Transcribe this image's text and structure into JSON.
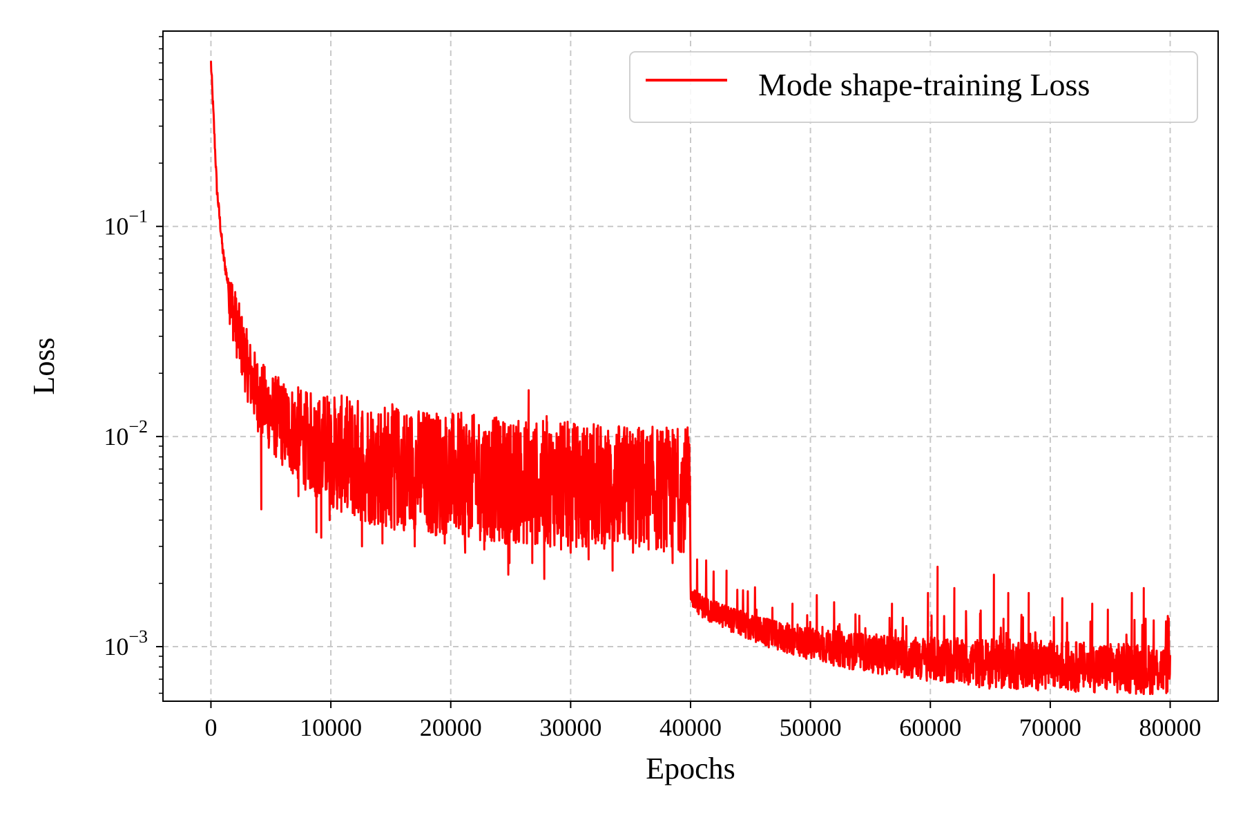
{
  "chart_data": {
    "type": "line",
    "title": "",
    "xlabel": "Epochs",
    "ylabel": "Loss",
    "yscale": "log",
    "xlim": [
      -4000,
      84000
    ],
    "ylim": [
      0.00055,
      0.85
    ],
    "grid": true,
    "legend_position": "top-right",
    "x_ticks": [
      0,
      10000,
      20000,
      30000,
      40000,
      50000,
      60000,
      70000,
      80000
    ],
    "x_tick_labels": [
      "0",
      "10000",
      "20000",
      "30000",
      "40000",
      "50000",
      "60000",
      "70000",
      "80000"
    ],
    "y_ticks": [
      {
        "value": 0.1,
        "base": "10",
        "exp": "−1"
      },
      {
        "value": 0.01,
        "base": "10",
        "exp": "−2"
      },
      {
        "value": 0.001,
        "base": "10",
        "exp": "−3"
      }
    ],
    "series": [
      {
        "name": "Mode shape-training Loss",
        "color": "#ff0000",
        "x": [
          0,
          200,
          500,
          1000,
          1500,
          2000,
          2500,
          3000,
          3500,
          4000,
          5000,
          6000,
          7000,
          8000,
          9000,
          10000,
          12000,
          15000,
          18000,
          20000,
          22000,
          25000,
          27000,
          30000,
          33000,
          35000,
          38000,
          39900,
          40000,
          40100,
          41000,
          42000,
          43000,
          44000,
          45000,
          47000,
          50000,
          53000,
          55000,
          58000,
          60000,
          62000,
          65000,
          68000,
          70000,
          73000,
          75000,
          78000,
          80000
        ],
        "y": [
          0.6,
          0.35,
          0.15,
          0.075,
          0.05,
          0.036,
          0.028,
          0.022,
          0.018,
          0.0155,
          0.013,
          0.0115,
          0.0105,
          0.0095,
          0.009,
          0.0085,
          0.0078,
          0.0072,
          0.0068,
          0.0066,
          0.0064,
          0.0061,
          0.006,
          0.0059,
          0.0058,
          0.0057,
          0.0056,
          0.0056,
          0.0019,
          0.0017,
          0.00155,
          0.00145,
          0.00138,
          0.0013,
          0.00123,
          0.00113,
          0.00103,
          0.00096,
          0.00093,
          0.00089,
          0.00087,
          0.00085,
          0.00083,
          0.00082,
          0.00081,
          0.0008,
          0.00079,
          0.00078,
          0.00078
        ],
        "spikes": [
          [
            4200,
            0.0045
          ],
          [
            7300,
            0.0052
          ],
          [
            8800,
            0.0035
          ],
          [
            9200,
            0.0033
          ],
          [
            9700,
            0.0155
          ],
          [
            9900,
            0.004
          ],
          [
            12600,
            0.003
          ],
          [
            14300,
            0.0031
          ],
          [
            15300,
            0.0036
          ],
          [
            16200,
            0.0038
          ],
          [
            17000,
            0.003
          ],
          [
            18500,
            0.0035
          ],
          [
            19500,
            0.0031
          ],
          [
            21200,
            0.0028
          ],
          [
            22800,
            0.0029
          ],
          [
            24800,
            0.0022
          ],
          [
            24900,
            0.0025
          ],
          [
            25000,
            0.0113
          ],
          [
            26500,
            0.0166
          ],
          [
            26800,
            0.0025
          ],
          [
            27800,
            0.0021
          ],
          [
            28000,
            0.0125
          ],
          [
            29200,
            0.0029
          ],
          [
            30000,
            0.0028
          ],
          [
            31000,
            0.003
          ],
          [
            31500,
            0.0026
          ],
          [
            33500,
            0.0023
          ],
          [
            35200,
            0.0028
          ],
          [
            36500,
            0.0029
          ],
          [
            38000,
            0.003
          ],
          [
            38500,
            0.0025
          ],
          [
            39800,
            0.0088
          ],
          [
            43000,
            0.0023
          ],
          [
            45500,
            0.0015
          ],
          [
            48500,
            0.0016
          ],
          [
            56800,
            0.0016
          ],
          [
            59800,
            0.0018
          ],
          [
            60600,
            0.0024
          ],
          [
            62000,
            0.0019
          ],
          [
            65300,
            0.0022
          ],
          [
            66500,
            0.0018
          ],
          [
            68200,
            0.0018
          ],
          [
            71000,
            0.0017
          ],
          [
            73500,
            0.0016
          ],
          [
            74800,
            0.0015
          ],
          [
            76800,
            0.0018
          ],
          [
            77800,
            0.0019
          ],
          [
            79800,
            0.0014
          ]
        ]
      }
    ]
  }
}
